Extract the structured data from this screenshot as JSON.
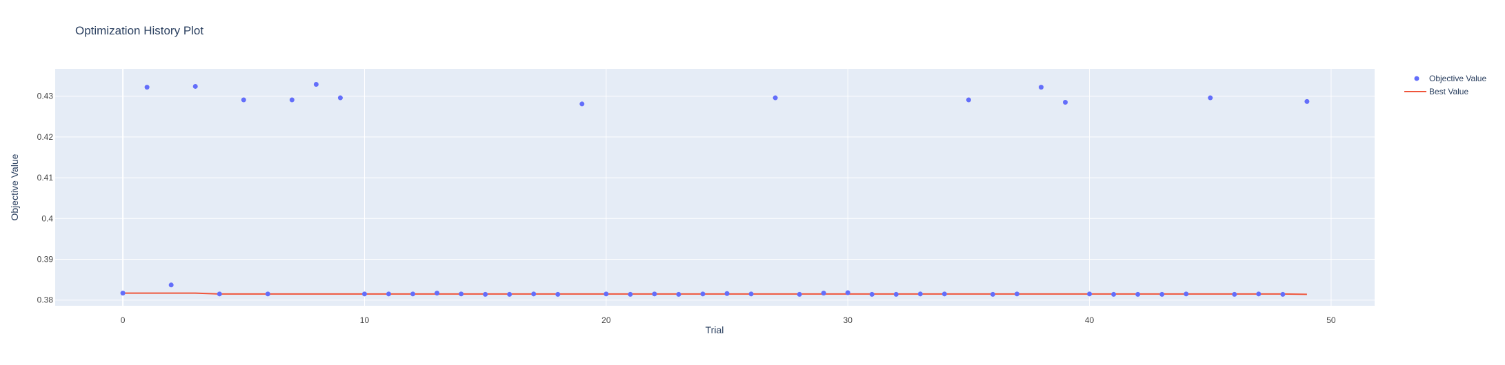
{
  "chart_data": {
    "type": "scatter",
    "title": "Optimization History Plot",
    "xlabel": "Trial",
    "ylabel": "Objective Value",
    "xlim": [
      -2.8,
      51.8
    ],
    "ylim": [
      0.3786,
      0.4367
    ],
    "xticks": [
      0,
      10,
      20,
      30,
      40,
      50
    ],
    "xtick_labels": [
      "0",
      "10",
      "20",
      "30",
      "40",
      "50"
    ],
    "yticks": [
      0.38,
      0.39,
      0.4,
      0.41,
      0.42,
      0.43
    ],
    "ytick_labels": [
      "0.38",
      "0.39",
      "0.4",
      "0.41",
      "0.42",
      "0.43"
    ],
    "grid": true,
    "legend_position": "top-right outside",
    "series": [
      {
        "name": "Objective Value",
        "kind": "markers",
        "color": "#636efa",
        "x": [
          0,
          1,
          2,
          3,
          4,
          5,
          6,
          7,
          8,
          9,
          10,
          11,
          12,
          13,
          14,
          15,
          16,
          17,
          18,
          19,
          20,
          21,
          22,
          23,
          24,
          25,
          26,
          27,
          28,
          29,
          30,
          31,
          32,
          33,
          34,
          35,
          36,
          37,
          38,
          39,
          40,
          41,
          42,
          43,
          44,
          45,
          46,
          47,
          48,
          49
        ],
        "y": [
          0.3817,
          0.4322,
          0.3837,
          0.4324,
          0.3815,
          0.4291,
          0.3815,
          0.4291,
          0.4329,
          0.4296,
          0.3815,
          0.3815,
          0.3815,
          0.3817,
          0.3815,
          0.3814,
          0.3814,
          0.3815,
          0.3814,
          0.4281,
          0.3815,
          0.3814,
          0.3815,
          0.3814,
          0.3815,
          0.3816,
          0.3815,
          0.4296,
          0.3814,
          0.3817,
          0.3818,
          0.3814,
          0.3814,
          0.3815,
          0.3815,
          0.4291,
          0.3814,
          0.3815,
          0.4322,
          0.4285,
          0.3815,
          0.3814,
          0.3814,
          0.3814,
          0.3815,
          0.4296,
          0.3814,
          0.3815,
          0.3814,
          0.4287
        ]
      },
      {
        "name": "Best Value",
        "kind": "line",
        "color": "#ef553b",
        "x": [
          0,
          1,
          2,
          3,
          4,
          5,
          6,
          7,
          8,
          9,
          10,
          11,
          12,
          13,
          14,
          15,
          16,
          17,
          18,
          19,
          20,
          21,
          22,
          23,
          24,
          25,
          26,
          27,
          28,
          29,
          30,
          31,
          32,
          33,
          34,
          35,
          36,
          37,
          38,
          39,
          40,
          41,
          42,
          43,
          44,
          45,
          46,
          47,
          48,
          49
        ],
        "y": [
          0.3817,
          0.3817,
          0.3817,
          0.3817,
          0.3815,
          0.3815,
          0.3815,
          0.3815,
          0.3815,
          0.3815,
          0.3815,
          0.3815,
          0.3815,
          0.3815,
          0.3815,
          0.3815,
          0.3815,
          0.3815,
          0.3815,
          0.3815,
          0.3815,
          0.3815,
          0.3815,
          0.3815,
          0.3815,
          0.3815,
          0.3815,
          0.3815,
          0.3815,
          0.3815,
          0.3815,
          0.3815,
          0.3815,
          0.3815,
          0.3815,
          0.3815,
          0.3815,
          0.3815,
          0.3815,
          0.3815,
          0.3815,
          0.3815,
          0.3815,
          0.3815,
          0.3815,
          0.3815,
          0.3815,
          0.3815,
          0.3815,
          0.3814
        ]
      }
    ]
  },
  "colors": {
    "plot_background": "#e5ecf6",
    "grid": "#ffffff",
    "text": "#2a3f5f",
    "tick_text": "#444444"
  }
}
